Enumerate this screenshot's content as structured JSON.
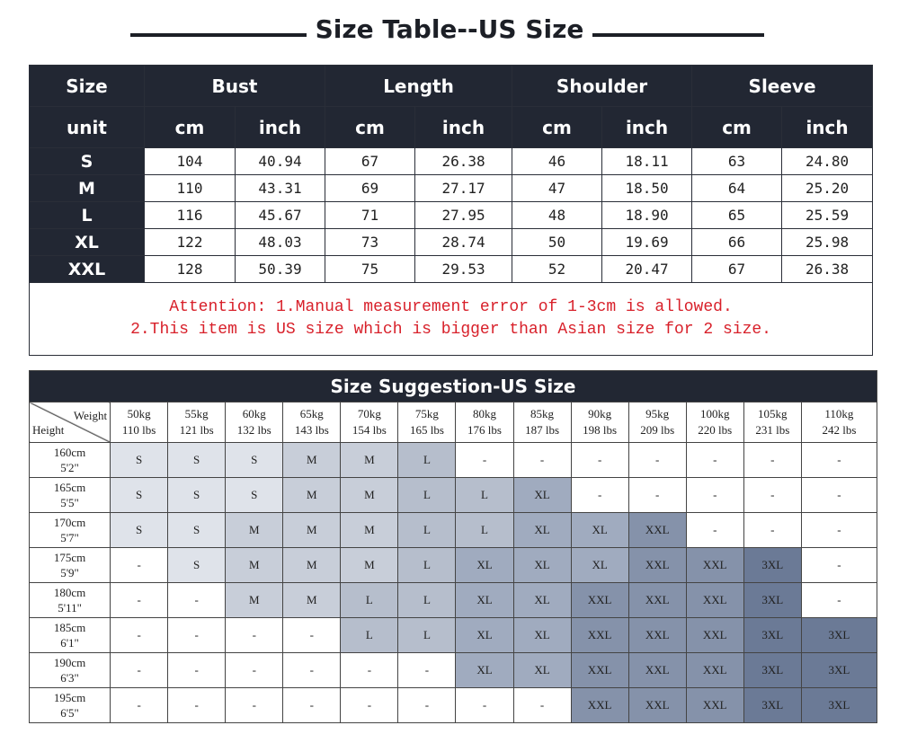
{
  "title": "Size Table--US Size",
  "size_table": {
    "headers": [
      "Size",
      "Bust",
      "Length",
      "Shoulder",
      "Sleeve"
    ],
    "units": [
      "unit",
      "cm",
      "inch",
      "cm",
      "inch",
      "cm",
      "inch",
      "cm",
      "inch"
    ],
    "rows": [
      [
        "S",
        "104",
        "40.94",
        "67",
        "26.38",
        "46",
        "18.11",
        "63",
        "24.80"
      ],
      [
        "M",
        "110",
        "43.31",
        "69",
        "27.17",
        "47",
        "18.50",
        "64",
        "25.20"
      ],
      [
        "L",
        "116",
        "45.67",
        "71",
        "27.95",
        "48",
        "18.90",
        "65",
        "25.59"
      ],
      [
        "XL",
        "122",
        "48.03",
        "73",
        "28.74",
        "50",
        "19.69",
        "66",
        "25.98"
      ],
      [
        "XXL",
        "128",
        "50.39",
        "75",
        "29.53",
        "52",
        "20.47",
        "67",
        "26.38"
      ]
    ],
    "attention": [
      "Attention: 1.Manual measurement error of 1-3cm is allowed.",
      "2.This item is US size which is bigger than Asian size for 2 size."
    ]
  },
  "suggestion": {
    "title": "Size Suggestion-US Size",
    "corner": {
      "weight": "Weight",
      "height": "Height"
    },
    "weights": [
      {
        "kg": "50kg",
        "lbs": "110 lbs"
      },
      {
        "kg": "55kg",
        "lbs": "121 lbs"
      },
      {
        "kg": "60kg",
        "lbs": "132 lbs"
      },
      {
        "kg": "65kg",
        "lbs": "143 lbs"
      },
      {
        "kg": "70kg",
        "lbs": "154 lbs"
      },
      {
        "kg": "75kg",
        "lbs": "165 lbs"
      },
      {
        "kg": "80kg",
        "lbs": "176 lbs"
      },
      {
        "kg": "85kg",
        "lbs": "187 lbs"
      },
      {
        "kg": "90kg",
        "lbs": "198 lbs"
      },
      {
        "kg": "95kg",
        "lbs": "209 lbs"
      },
      {
        "kg": "100kg",
        "lbs": "220 lbs"
      },
      {
        "kg": "105kg",
        "lbs": "231 lbs"
      },
      {
        "kg": "110kg",
        "lbs": "242 lbs"
      }
    ],
    "rows": [
      {
        "cm": "160cm",
        "ft": "5'2\"",
        "sizes": [
          "S",
          "S",
          "S",
          "M",
          "M",
          "L",
          "-",
          "-",
          "-",
          "-",
          "-",
          "-",
          "-"
        ]
      },
      {
        "cm": "165cm",
        "ft": "5'5\"",
        "sizes": [
          "S",
          "S",
          "S",
          "M",
          "M",
          "L",
          "L",
          "XL",
          "-",
          "-",
          "-",
          "-",
          "-"
        ]
      },
      {
        "cm": "170cm",
        "ft": "5'7\"",
        "sizes": [
          "S",
          "S",
          "M",
          "M",
          "M",
          "L",
          "L",
          "XL",
          "XL",
          "XXL",
          "-",
          "-",
          "-"
        ]
      },
      {
        "cm": "175cm",
        "ft": "5'9\"",
        "sizes": [
          "-",
          "S",
          "M",
          "M",
          "M",
          "L",
          "XL",
          "XL",
          "XL",
          "XXL",
          "XXL",
          "3XL",
          "-"
        ]
      },
      {
        "cm": "180cm",
        "ft": "5'11\"",
        "sizes": [
          "-",
          "-",
          "M",
          "M",
          "L",
          "L",
          "XL",
          "XL",
          "XXL",
          "XXL",
          "XXL",
          "3XL",
          "-"
        ]
      },
      {
        "cm": "185cm",
        "ft": "6'1\"",
        "sizes": [
          "-",
          "-",
          "-",
          "-",
          "L",
          "L",
          "XL",
          "XL",
          "XXL",
          "XXL",
          "XXL",
          "3XL",
          "3XL"
        ]
      },
      {
        "cm": "190cm",
        "ft": "6'3\"",
        "sizes": [
          "-",
          "-",
          "-",
          "-",
          "-",
          "-",
          "XL",
          "XL",
          "XXL",
          "XXL",
          "XXL",
          "3XL",
          "3XL"
        ]
      },
      {
        "cm": "195cm",
        "ft": "6'5\"",
        "sizes": [
          "-",
          "-",
          "-",
          "-",
          "-",
          "-",
          "-",
          "-",
          "XXL",
          "XXL",
          "XXL",
          "3XL",
          "3XL"
        ]
      }
    ],
    "colors": {
      "S": "#dfe3ea",
      "M": "#c8ced9",
      "L": "#b6becc",
      "XL": "#a0abbf",
      "XXL": "#8592aa",
      "3XL": "#6b7a96"
    }
  }
}
